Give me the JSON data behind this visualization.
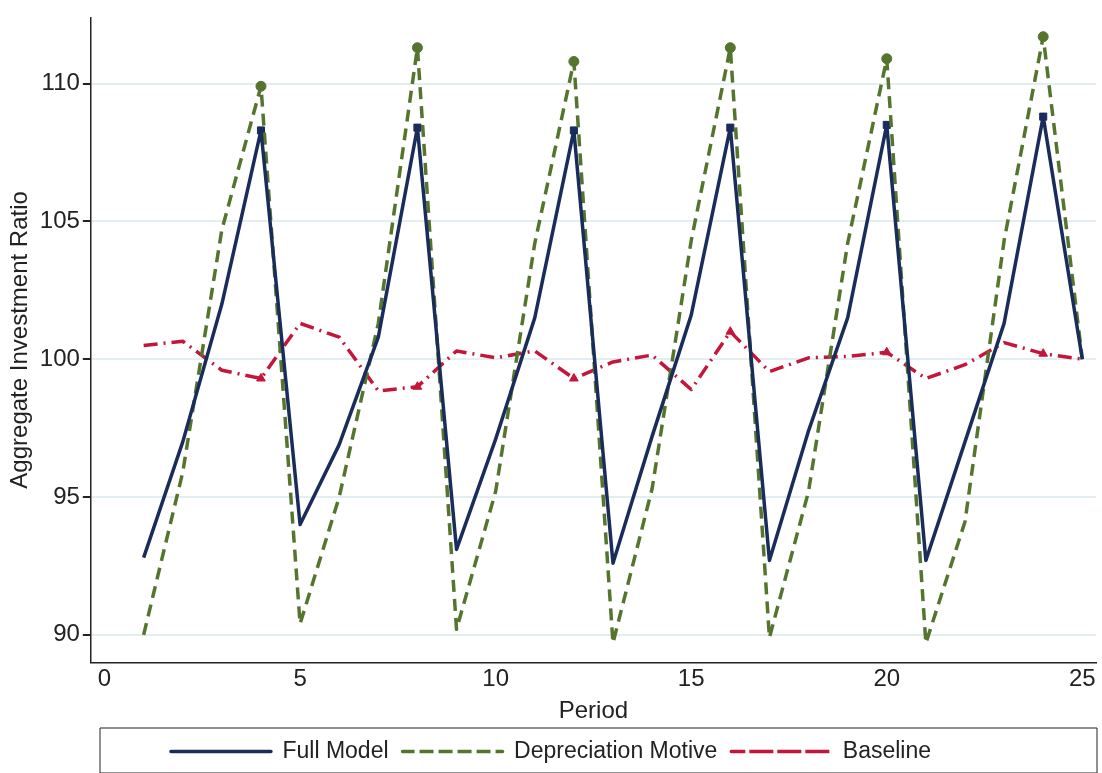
{
  "chart_data": {
    "type": "line",
    "xlabel": "Period",
    "ylabel": "Aggregate Investment Ratio",
    "x": [
      1,
      2,
      3,
      4,
      5,
      6,
      7,
      8,
      9,
      10,
      11,
      12,
      13,
      14,
      15,
      16,
      17,
      18,
      19,
      20,
      21,
      22,
      23,
      24,
      25
    ],
    "series": [
      {
        "name": "Full Model",
        "color": "#1a2d5a",
        "line_style": "solid",
        "marker": "none",
        "values": [
          92.8,
          97.0,
          102.0,
          108.3,
          94.0,
          96.9,
          100.8,
          108.4,
          93.1,
          97.1,
          101.5,
          108.3,
          92.6,
          97.2,
          101.6,
          108.4,
          92.7,
          97.4,
          101.5,
          108.5,
          92.7,
          97.0,
          101.3,
          108.8,
          100.0
        ]
      },
      {
        "name": "Depreciation Motive",
        "color": "#55752f",
        "line_style": "dashed",
        "marker": "none",
        "values": [
          90.0,
          95.9,
          104.7,
          109.9,
          90.4,
          95.0,
          101.3,
          111.3,
          90.2,
          95.2,
          104.2,
          110.8,
          89.7,
          95.3,
          104.3,
          111.3,
          89.9,
          95.2,
          104.2,
          110.9,
          89.7,
          94.1,
          104.3,
          111.7,
          100.0
        ]
      },
      {
        "name": "Baseline",
        "color": "#c4163a",
        "line_style": "dashdot",
        "marker": "none",
        "values": [
          100.5,
          100.65,
          99.6,
          99.3,
          101.3,
          100.8,
          98.85,
          99.0,
          100.3,
          100.05,
          100.3,
          99.3,
          99.9,
          100.15,
          98.9,
          101.0,
          99.55,
          100.05,
          100.1,
          100.25,
          99.3,
          99.8,
          100.6,
          100.2,
          100.0
        ]
      },
      {
        "type": "scatter",
        "color": "#1a2d5a",
        "marker": "square",
        "x": [
          4,
          8,
          12,
          16,
          20,
          24
        ],
        "values": [
          108.3,
          108.4,
          108.3,
          108.4,
          108.5,
          108.8
        ]
      },
      {
        "type": "scatter",
        "color": "#55752f",
        "marker": "circle",
        "x": [
          4,
          8,
          12,
          16,
          20,
          24
        ],
        "values": [
          109.9,
          111.3,
          110.8,
          111.3,
          110.9,
          111.7
        ]
      },
      {
        "type": "scatter",
        "color": "#c4163a",
        "marker": "triangle",
        "x": [
          4,
          8,
          12,
          16,
          20,
          24
        ],
        "values": [
          99.3,
          99.0,
          99.3,
          101.0,
          100.25,
          100.2
        ]
      }
    ],
    "xlim": [
      -0.35,
      25.35
    ],
    "xticks": [
      0,
      5,
      10,
      15,
      20,
      25
    ],
    "ylim": [
      89,
      112.4
    ],
    "yticks": [
      90,
      95,
      100,
      105,
      110
    ],
    "grid": "y",
    "legend": "bottom"
  }
}
